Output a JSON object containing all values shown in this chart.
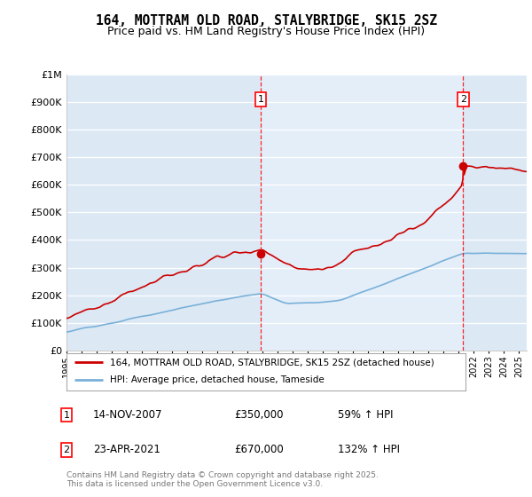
{
  "title": "164, MOTTRAM OLD ROAD, STALYBRIDGE, SK15 2SZ",
  "subtitle": "Price paid vs. HM Land Registry's House Price Index (HPI)",
  "background_color": "#dce9f5",
  "plot_bg_color": "#dce9f5",
  "ylim": [
    0,
    1000000
  ],
  "ytick_labels": [
    "£0",
    "£100K",
    "£200K",
    "£300K",
    "£400K",
    "£500K",
    "£600K",
    "£700K",
    "£800K",
    "£900K",
    "£1M"
  ],
  "hpi_color": "#7ab0d8",
  "price_color": "#cc0000",
  "legend_line1": "164, MOTTRAM OLD ROAD, STALYBRIDGE, SK15 2SZ (detached house)",
  "legend_line2": "HPI: Average price, detached house, Tameside",
  "footer": "Contains HM Land Registry data © Crown copyright and database right 2025.\nThis data is licensed under the Open Government Licence v3.0."
}
